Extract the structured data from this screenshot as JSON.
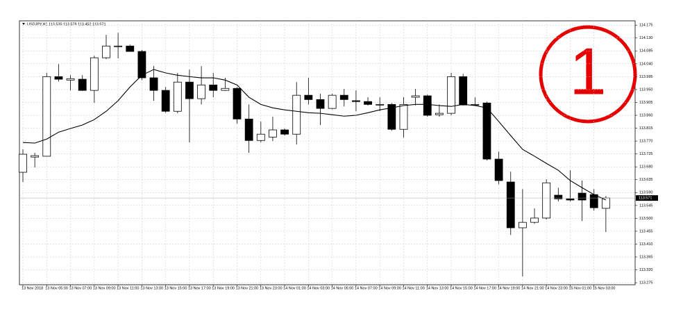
{
  "chart_data": {
    "type": "candlestick",
    "header": "USDJPY,H1 113.535 113.578 113.452 113.571",
    "annotation": "1",
    "categories": [
      "13 Nov 2018",
      null,
      "13 Nov 05:00",
      null,
      "13 Nov 07:00",
      null,
      "13 Nov 09:00",
      null,
      "13 Nov 11:00",
      null,
      "13 Nov 13:00",
      null,
      "13 Nov 15:00",
      null,
      "13 Nov 17:00",
      null,
      "13 Nov 19:00",
      null,
      "13 Nov 21:00",
      null,
      "13 Nov 23:00",
      null,
      "14 Nov 01:00",
      null,
      "14 Nov 03:00",
      null,
      "14 Nov 05:00",
      null,
      "14 Nov 07:00",
      null,
      "14 Nov 09:00",
      null,
      "14 Nov 11:00",
      null,
      "14 Nov 13:00",
      null,
      "14 Nov 15:00",
      null,
      "14 Nov 17:00",
      null,
      "14 Nov 19:00",
      null,
      "14 Nov 21:00",
      null,
      "14 Nov 23:00",
      null,
      "15 Nov 01:00",
      null,
      "15 Nov 03:00",
      null
    ],
    "open": [
      113.661,
      113.714,
      113.717,
      113.995,
      113.983,
      113.986,
      113.947,
      114.061,
      114.1,
      114.102,
      114.083,
      113.991,
      113.947,
      113.874,
      113.976,
      113.918,
      113.966,
      113.947,
      113.954,
      113.847,
      113.772,
      113.784,
      113.809,
      113.794,
      113.93,
      113.915,
      113.884,
      113.93,
      113.911,
      113.908,
      113.896,
      113.898,
      113.811,
      113.923,
      113.928,
      113.862,
      113.867,
      113.995,
      113.896,
      113.903,
      113.707,
      113.627,
      113.467,
      113.486,
      113.501,
      113.581,
      113.568,
      113.588,
      113.583,
      113.535
    ],
    "high": [
      113.741,
      113.729,
      114.008,
      114.039,
      114.0,
      114.0,
      114.068,
      114.141,
      114.148,
      114.107,
      114.088,
      114.032,
      113.959,
      114.008,
      114.02,
      114.032,
      114.008,
      113.991,
      113.959,
      113.898,
      113.838,
      113.855,
      113.814,
      113.976,
      113.991,
      113.935,
      113.935,
      113.952,
      113.947,
      113.923,
      113.923,
      113.903,
      113.923,
      113.952,
      113.932,
      113.898,
      114.008,
      114.005,
      113.923,
      113.908,
      113.733,
      113.663,
      113.602,
      113.535,
      113.636,
      113.607,
      113.668,
      113.632,
      113.602,
      113.578
    ],
    "low": [
      113.627,
      113.678,
      113.717,
      113.978,
      113.947,
      113.945,
      113.903,
      114.056,
      114.059,
      114.083,
      113.983,
      113.911,
      113.869,
      113.867,
      113.765,
      113.898,
      113.923,
      113.945,
      113.831,
      113.729,
      113.765,
      113.77,
      113.789,
      113.758,
      113.898,
      113.826,
      113.881,
      113.891,
      113.874,
      113.894,
      113.874,
      113.806,
      113.782,
      113.894,
      113.855,
      113.855,
      113.86,
      113.894,
      113.894,
      113.702,
      113.619,
      113.442,
      113.297,
      113.481,
      113.496,
      113.559,
      113.559,
      113.491,
      113.527,
      113.452
    ],
    "close": [
      113.724,
      113.719,
      113.995,
      113.986,
      113.988,
      113.947,
      114.061,
      114.102,
      114.102,
      114.083,
      113.991,
      113.947,
      113.874,
      113.976,
      113.918,
      113.966,
      113.947,
      113.954,
      113.847,
      113.772,
      113.794,
      113.809,
      113.794,
      113.93,
      113.915,
      113.884,
      113.93,
      113.915,
      113.908,
      113.898,
      113.898,
      113.811,
      113.898,
      113.928,
      113.86,
      113.867,
      113.995,
      113.896,
      113.898,
      113.707,
      113.632,
      113.467,
      113.486,
      113.501,
      113.624,
      113.568,
      113.564,
      113.564,
      113.537,
      113.571
    ],
    "ma": {
      "color": "#000000",
      "values": [
        113.765,
        113.763,
        113.777,
        113.801,
        113.814,
        113.826,
        113.845,
        113.874,
        113.911,
        113.959,
        114.0,
        114.02,
        114.008,
        114.0,
        113.995,
        113.991,
        113.991,
        113.983,
        113.966,
        113.923,
        113.898,
        113.886,
        113.879,
        113.874,
        113.869,
        113.867,
        113.862,
        113.857,
        113.86,
        113.869,
        113.879,
        113.886,
        113.894,
        113.898,
        113.898,
        113.894,
        113.891,
        113.898,
        113.894,
        113.886,
        113.838,
        113.789,
        113.741,
        113.717,
        113.692,
        113.668,
        113.632,
        113.607,
        113.583,
        113.564
      ]
    },
    "ylim": [
      113.268,
      114.19
    ],
    "yticks": [
      114.175,
      {
        "value": 114.13,
        "label": "114.130"
      },
      114.085,
      {
        "value": 114.04,
        "label": "114.040"
      },
      113.995,
      {
        "value": 113.95,
        "label": "113.950"
      },
      113.905,
      {
        "value": 113.86,
        "label": "113.860"
      },
      113.815,
      {
        "value": 113.77,
        "label": "113.770"
      },
      113.725,
      {
        "value": 113.68,
        "label": "113.680"
      },
      113.635,
      {
        "value": 113.59,
        "label": "113.590"
      },
      113.545,
      {
        "value": 113.5,
        "label": "113.500"
      },
      113.455,
      {
        "value": 113.41,
        "label": "113.410"
      },
      113.365,
      {
        "value": 113.32,
        "label": "113.320"
      },
      113.275
    ],
    "grid": true
  }
}
